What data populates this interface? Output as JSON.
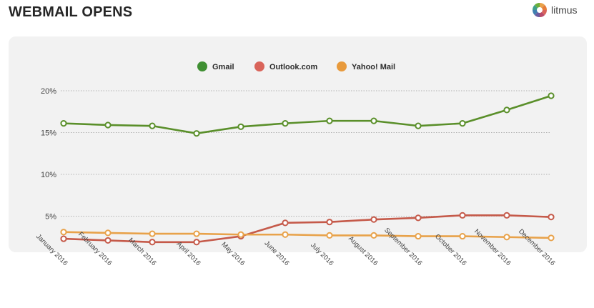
{
  "header": {
    "title": "WEBMAIL OPENS",
    "brand": "litmus"
  },
  "colors": {
    "gmail": "#5a8f2a",
    "gmail_legend": "#3f8f32",
    "outlook": "#c55a4a",
    "outlook_legend": "#d9645a",
    "yahoo": "#e8a24a",
    "yahoo_legend": "#e89a3c",
    "panel": "#f2f2f2"
  },
  "chart_data": {
    "type": "line",
    "x": [
      "January 2016",
      "February 2016",
      "March 2016",
      "April 2016",
      "May 2016",
      "June 2016",
      "July 2016",
      "August 2016",
      "September 2016",
      "October 2016",
      "November 2016",
      "December 2016"
    ],
    "series": [
      {
        "name": "Gmail",
        "values": [
          16.1,
          15.9,
          15.8,
          14.9,
          15.7,
          16.1,
          16.4,
          16.4,
          15.8,
          16.1,
          17.7,
          19.4
        ]
      },
      {
        "name": "Outlook.com",
        "values": [
          2.3,
          2.1,
          1.9,
          1.9,
          2.6,
          4.2,
          4.3,
          4.6,
          4.8,
          5.1,
          5.1,
          4.9
        ]
      },
      {
        "name": "Yahoo! Mail",
        "values": [
          3.1,
          3.0,
          2.9,
          2.9,
          2.8,
          2.8,
          2.7,
          2.7,
          2.6,
          2.6,
          2.5,
          2.4
        ]
      }
    ],
    "yticks": [
      "20%",
      "15%",
      "10%",
      "5%"
    ],
    "ytick_values": [
      20,
      15,
      10,
      5
    ],
    "ylim": [
      0,
      20
    ],
    "legend": "top-center",
    "grid": true
  }
}
